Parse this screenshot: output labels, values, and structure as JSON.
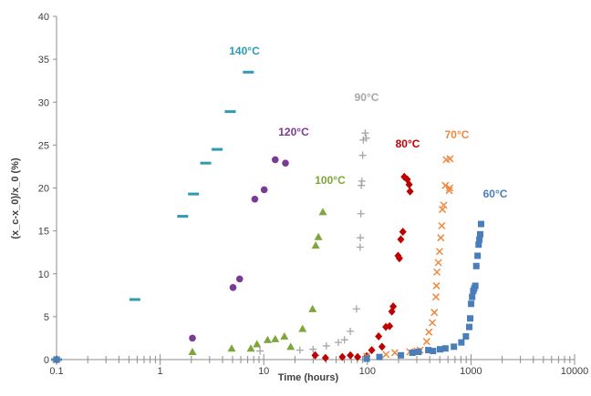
{
  "chart_data": {
    "type": "scatter",
    "xlabel": "Time (hours)",
    "ylabel": "(x_c-x_0)/x_0 (%)",
    "x_scale": "log",
    "xlim": [
      0.1,
      10000
    ],
    "ylim": [
      0,
      40
    ],
    "x_ticks": [
      "0.1",
      "1",
      "10",
      "100",
      "1000",
      "10000"
    ],
    "y_ticks": [
      "0",
      "5",
      "10",
      "15",
      "20",
      "25",
      "30",
      "35",
      "40"
    ],
    "grid": false,
    "legend": "none",
    "series": [
      {
        "name": "140°C",
        "color": "#2e9bb1",
        "marker": "dash",
        "points": [
          [
            0.1,
            0
          ],
          [
            0.57,
            7.0
          ],
          [
            1.65,
            16.7
          ],
          [
            2.1,
            19.3
          ],
          [
            2.75,
            22.9
          ],
          [
            3.55,
            24.5
          ],
          [
            4.75,
            28.9
          ],
          [
            7.1,
            33.5
          ]
        ]
      },
      {
        "name": "120°C",
        "color": "#7a3a96",
        "marker": "circle",
        "points": [
          [
            0.1,
            0
          ],
          [
            2.05,
            2.5
          ],
          [
            5.05,
            8.4
          ],
          [
            5.85,
            9.4
          ],
          [
            8.2,
            18.7
          ],
          [
            10.1,
            19.8
          ],
          [
            12.9,
            23.3
          ],
          [
            16.2,
            22.9
          ]
        ]
      },
      {
        "name": "100°C",
        "color": "#7ea63a",
        "marker": "triangle",
        "points": [
          [
            0.1,
            0
          ],
          [
            2.05,
            0.9
          ],
          [
            4.9,
            1.3
          ],
          [
            7.5,
            1.3
          ],
          [
            8.6,
            1.8
          ],
          [
            10.9,
            2.3
          ],
          [
            12.9,
            2.4
          ],
          [
            15.8,
            2.7
          ],
          [
            18.2,
            1.5
          ],
          [
            23.7,
            3.6
          ],
          [
            29.6,
            5.9
          ],
          [
            31.7,
            13.3
          ],
          [
            33.7,
            14.3
          ],
          [
            37.2,
            17.2
          ]
        ]
      },
      {
        "name": "90°C",
        "color": "#a6a6a6",
        "marker": "plus",
        "points": [
          [
            0.1,
            0
          ],
          [
            9.2,
            1.0
          ],
          [
            22.3,
            1.1
          ],
          [
            29.9,
            1.2
          ],
          [
            31.8,
            0.5
          ],
          [
            40.2,
            1.6
          ],
          [
            52.5,
            2.0
          ],
          [
            60.1,
            2.3
          ],
          [
            68.5,
            3.3
          ],
          [
            78.5,
            5.9
          ],
          [
            85.2,
            13.1
          ],
          [
            85.6,
            14.2
          ],
          [
            86.5,
            17.0
          ],
          [
            87.5,
            20.3
          ],
          [
            88.5,
            20.8
          ],
          [
            90.1,
            23.8
          ],
          [
            91.3,
            25.6
          ],
          [
            95.3,
            26.4
          ],
          [
            97.5,
            25.8
          ]
        ]
      },
      {
        "name": "80°C",
        "color": "#c00000",
        "marker": "diamond",
        "points": [
          [
            0.1,
            0
          ],
          [
            31.3,
            0.5
          ],
          [
            39.4,
            0.2
          ],
          [
            57.3,
            0.3
          ],
          [
            68.5,
            0.5
          ],
          [
            80.5,
            0.3
          ],
          [
            98.6,
            0.4
          ],
          [
            110.2,
            1.1
          ],
          [
            128.5,
            2.7
          ],
          [
            138.5,
            1.5
          ],
          [
            150.9,
            3.8
          ],
          [
            163.9,
            3.9
          ],
          [
            172.3,
            5.6
          ],
          [
            177.6,
            6.2
          ],
          [
            197.8,
            12.1
          ],
          [
            203.9,
            11.8
          ],
          [
            210.2,
            14.0
          ],
          [
            220.1,
            14.9
          ],
          [
            227.1,
            21.3
          ],
          [
            242.8,
            21.0
          ],
          [
            253.1,
            20.4
          ],
          [
            258.2,
            19.6
          ]
        ]
      },
      {
        "name": "70°C",
        "color": "#f0883e",
        "marker": "x",
        "points": [
          [
            0.1,
            0
          ],
          [
            98.6,
            0.4
          ],
          [
            151.3,
            0.6
          ],
          [
            184.1,
            0.8
          ],
          [
            257.1,
            0.9
          ],
          [
            300.8,
            1.0
          ],
          [
            322.7,
            1.1
          ],
          [
            373.5,
            2.1
          ],
          [
            392.8,
            3.2
          ],
          [
            423.7,
            4.3
          ],
          [
            443.4,
            5.5
          ],
          [
            458.7,
            7.3
          ],
          [
            464.1,
            8.6
          ],
          [
            469.4,
            10.2
          ],
          [
            484.1,
            11.3
          ],
          [
            497.3,
            12.6
          ],
          [
            511.6,
            14.2
          ],
          [
            522.7,
            15.6
          ],
          [
            530.1,
            17.5
          ],
          [
            546.4,
            18.0
          ],
          [
            566.1,
            20.3
          ],
          [
            577.4,
            23.3
          ],
          [
            617.2,
            19.7
          ],
          [
            623.1,
            20.0
          ],
          [
            627.8,
            23.4
          ]
        ]
      },
      {
        "name": "60°C",
        "color": "#4a7ebb",
        "marker": "square",
        "points": [
          [
            0.1,
            0
          ],
          [
            98.6,
            0.1
          ],
          [
            130.8,
            0.3
          ],
          [
            210.7,
            0.5
          ],
          [
            272.1,
            0.8
          ],
          [
            312.4,
            0.9
          ],
          [
            387.2,
            1.1
          ],
          [
            430.4,
            1.0
          ],
          [
            502.7,
            1.2
          ],
          [
            566.2,
            1.3
          ],
          [
            684.3,
            1.5
          ],
          [
            807.9,
            2.0
          ],
          [
            893.1,
            2.7
          ],
          [
            962.8,
            3.8
          ],
          [
            982.2,
            4.8
          ],
          [
            1003.5,
            6.5
          ],
          [
            1026.1,
            7.3
          ],
          [
            1053.0,
            8.0
          ],
          [
            1075.2,
            8.3
          ],
          [
            1101.5,
            8.6
          ],
          [
            1126.0,
            10.9
          ],
          [
            1157.8,
            12.1
          ],
          [
            1184.7,
            13.4
          ],
          [
            1205.6,
            14.0
          ],
          [
            1227.0,
            14.6
          ],
          [
            1251.5,
            15.8
          ]
        ]
      }
    ]
  }
}
